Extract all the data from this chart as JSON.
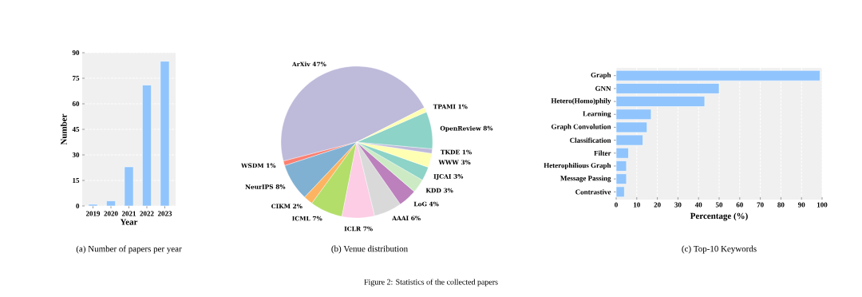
{
  "chart_data": [
    {
      "type": "bar",
      "title": "(a) Number of papers per year",
      "xlabel": "Year",
      "ylabel": "Number",
      "categories": [
        "2019",
        "2020",
        "2021",
        "2022",
        "2023"
      ],
      "values": [
        1,
        3,
        23,
        71,
        85
      ],
      "color": "#90c4fc",
      "ylim": [
        0,
        90
      ],
      "yticks": [
        0,
        15,
        30,
        45,
        60,
        75,
        90
      ],
      "grid": "y"
    },
    {
      "type": "pie",
      "title": "(b) Venue distribution",
      "categories": [
        "ArXiv",
        "WSDM",
        "NeurIPS",
        "CIKM",
        "ICML",
        "ICLR",
        "AAAI",
        "LoG",
        "KDD",
        "IJCAI",
        "WWW",
        "TKDE",
        "OpenReview",
        "TPAMI"
      ],
      "values": [
        47,
        1,
        8,
        2,
        7,
        7,
        6,
        4,
        3,
        3,
        3,
        1,
        8,
        1
      ],
      "value_labels": [
        "47%",
        "1%",
        "8%",
        "2%",
        "7%",
        "7%",
        "6%",
        "4%",
        "3%",
        "3%",
        "3%",
        "1%",
        "8%",
        "1%"
      ],
      "colors": [
        "#bebada",
        "#fb8072",
        "#80b1d3",
        "#fdb462",
        "#b3de69",
        "#fccde5",
        "#d9d9d9",
        "#bc80bd",
        "#ccebc5",
        "#8dd3c7",
        "#ffffb3",
        "#bebada",
        "#8dd3c7",
        "#ffffb3"
      ],
      "annotations": [
        "Figure 2: Statistics of the collected papers"
      ]
    },
    {
      "type": "bar",
      "orientation": "horizontal",
      "title": "(c) Top-10 Keywords",
      "xlabel": "Percentage (%)",
      "categories": [
        "Graph",
        "GNN",
        "Hetero(Homo)phily",
        "Learning",
        "Graph Convolution",
        "Classification",
        "Filter",
        "Heterophilious Graph",
        "Message Passing",
        "Contrastive"
      ],
      "values": [
        99,
        50,
        43,
        17,
        15,
        13,
        6,
        5,
        5,
        4
      ],
      "color": "#90c4fc",
      "xlim": [
        0,
        100
      ],
      "xticks": [
        0,
        10,
        20,
        30,
        40,
        50,
        60,
        70,
        80,
        90,
        100
      ],
      "grid": "x"
    }
  ]
}
